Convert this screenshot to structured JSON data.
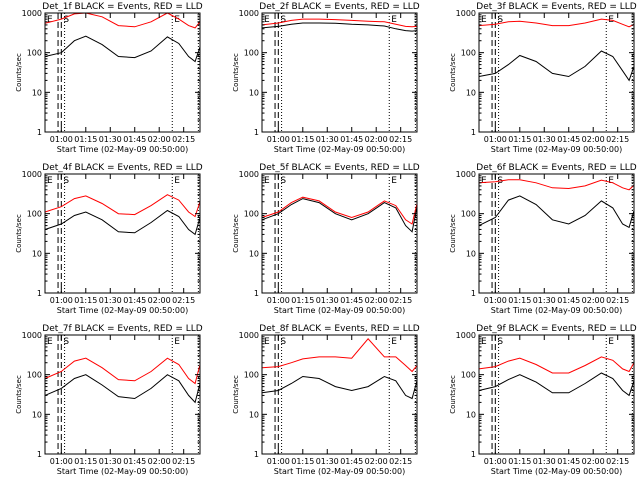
{
  "figure": {
    "layout": "3x3 grid",
    "xlabel": "Start Time (02-May-09 00:50:00)",
    "ylabel": "Counts/sec",
    "y_ticks": [
      "1",
      "10",
      "100",
      "1000"
    ],
    "x_ticks": [
      "01:00",
      "01:15",
      "01:30",
      "01:45",
      "02:00",
      "02:15"
    ],
    "marker_labels": [
      "E",
      "S",
      "E"
    ],
    "colors": {
      "events": "#000000",
      "lld": "#ff0000",
      "axes": "#000000",
      "background": "#ffffff"
    }
  },
  "chart_data": [
    {
      "type": "line",
      "title": "Det_1f BLACK = Events, RED = LLD",
      "yscale": "log",
      "ylim": [
        1,
        1000
      ],
      "xlim": [
        "00:50",
        "02:25"
      ],
      "xlabel": "Start Time (02-May-09 00:50:00)",
      "ylabel": "Counts/sec",
      "series": [
        {
          "name": "LLD",
          "color": "#ff0000",
          "x": [
            "00:50",
            "01:00",
            "01:08",
            "01:15",
            "01:25",
            "01:35",
            "01:45",
            "01:55",
            "02:05",
            "02:12",
            "02:18",
            "02:22",
            "02:25"
          ],
          "y": [
            550,
            700,
            950,
            1000,
            800,
            480,
            450,
            600,
            1000,
            700,
            480,
            420,
            600
          ]
        },
        {
          "name": "Events",
          "color": "#000000",
          "x": [
            "00:50",
            "01:00",
            "01:08",
            "01:15",
            "01:25",
            "01:35",
            "01:45",
            "01:55",
            "02:05",
            "02:12",
            "02:18",
            "02:22",
            "02:25"
          ],
          "y": [
            80,
            100,
            200,
            260,
            160,
            80,
            75,
            110,
            250,
            170,
            80,
            60,
            140
          ]
        }
      ]
    },
    {
      "type": "line",
      "title": "Det_2f BLACK = Events, RED = LLD",
      "yscale": "log",
      "ylim": [
        1,
        1000
      ],
      "xlim": [
        "00:50",
        "02:25"
      ],
      "xlabel": "Start Time (02-May-09 00:50:00)",
      "ylabel": "Counts/sec",
      "series": [
        {
          "name": "LLD",
          "color": "#ff0000",
          "x": [
            "00:50",
            "01:00",
            "01:08",
            "01:15",
            "01:25",
            "01:35",
            "01:45",
            "01:55",
            "02:05",
            "02:12",
            "02:18",
            "02:22",
            "02:25"
          ],
          "y": [
            500,
            560,
            650,
            700,
            700,
            680,
            650,
            620,
            600,
            520,
            460,
            450,
            460
          ]
        },
        {
          "name": "Events",
          "color": "#000000",
          "x": [
            "00:50",
            "01:00",
            "01:08",
            "01:15",
            "01:25",
            "01:35",
            "01:45",
            "01:55",
            "02:05",
            "02:12",
            "02:18",
            "02:22",
            "02:25"
          ],
          "y": [
            420,
            460,
            520,
            560,
            560,
            550,
            520,
            500,
            470,
            400,
            360,
            350,
            360
          ]
        }
      ]
    },
    {
      "type": "line",
      "title": "Det_3f BLACK = Events, RED = LLD",
      "yscale": "log",
      "ylim": [
        1,
        1000
      ],
      "xlim": [
        "00:50",
        "02:25"
      ],
      "xlabel": "Start Time (02-May-09 00:50:00)",
      "ylabel": "Counts/sec",
      "series": [
        {
          "name": "LLD",
          "color": "#ff0000",
          "x": [
            "00:50",
            "01:00",
            "01:08",
            "01:15",
            "01:25",
            "01:35",
            "01:45",
            "01:55",
            "02:05",
            "02:12",
            "02:18",
            "02:22",
            "02:25"
          ],
          "y": [
            480,
            520,
            600,
            620,
            560,
            480,
            480,
            560,
            700,
            650,
            520,
            450,
            520
          ]
        },
        {
          "name": "Events",
          "color": "#000000",
          "x": [
            "00:50",
            "01:00",
            "01:08",
            "01:15",
            "01:25",
            "01:35",
            "01:45",
            "01:55",
            "02:05",
            "02:12",
            "02:18",
            "02:22",
            "02:25"
          ],
          "y": [
            25,
            30,
            50,
            85,
            60,
            30,
            25,
            45,
            110,
            80,
            35,
            20,
            45
          ]
        }
      ]
    },
    {
      "type": "line",
      "title": "Det_4f BLACK = Events, RED = LLD",
      "yscale": "log",
      "ylim": [
        1,
        1000
      ],
      "xlim": [
        "00:50",
        "02:25"
      ],
      "xlabel": "Start Time (02-May-09 00:50:00)",
      "ylabel": "Counts/sec",
      "series": [
        {
          "name": "LLD",
          "color": "#ff0000",
          "x": [
            "00:50",
            "01:00",
            "01:08",
            "01:15",
            "01:25",
            "01:35",
            "01:45",
            "01:55",
            "02:05",
            "02:12",
            "02:18",
            "02:22",
            "02:25"
          ],
          "y": [
            110,
            150,
            240,
            280,
            180,
            100,
            95,
            160,
            300,
            220,
            110,
            85,
            200
          ]
        },
        {
          "name": "Events",
          "color": "#000000",
          "x": [
            "00:50",
            "01:00",
            "01:08",
            "01:15",
            "01:25",
            "01:35",
            "01:45",
            "01:55",
            "02:05",
            "02:12",
            "02:18",
            "02:22",
            "02:25"
          ],
          "y": [
            40,
            55,
            90,
            110,
            70,
            35,
            33,
            60,
            120,
            85,
            40,
            30,
            80
          ]
        }
      ]
    },
    {
      "type": "line",
      "title": "Det_5f BLACK = Events, RED = LLD",
      "yscale": "log",
      "ylim": [
        1,
        1000
      ],
      "xlim": [
        "00:50",
        "02:25"
      ],
      "xlabel": "Start Time (02-May-09 00:50:00)",
      "ylabel": "Counts/sec",
      "series": [
        {
          "name": "LLD",
          "color": "#ff0000",
          "x": [
            "00:50",
            "01:00",
            "01:08",
            "01:15",
            "01:25",
            "01:35",
            "01:45",
            "01:55",
            "02:05",
            "02:12",
            "02:18",
            "02:22",
            "02:25"
          ],
          "y": [
            80,
            110,
            190,
            260,
            210,
            110,
            80,
            110,
            210,
            160,
            70,
            55,
            180
          ]
        },
        {
          "name": "Events",
          "color": "#000000",
          "x": [
            "00:50",
            "01:00",
            "01:08",
            "01:15",
            "01:25",
            "01:35",
            "01:45",
            "01:55",
            "02:05",
            "02:12",
            "02:18",
            "02:22",
            "02:25"
          ],
          "y": [
            70,
            100,
            170,
            240,
            190,
            100,
            70,
            100,
            190,
            140,
            50,
            35,
            150
          ]
        }
      ]
    },
    {
      "type": "line",
      "title": "Det_6f BLACK = Events, RED = LLD",
      "yscale": "log",
      "ylim": [
        1,
        1000
      ],
      "xlim": [
        "00:50",
        "02:25"
      ],
      "xlabel": "Start Time (02-May-09 00:50:00)",
      "ylabel": "Counts/sec",
      "series": [
        {
          "name": "LLD",
          "color": "#ff0000",
          "x": [
            "00:50",
            "01:00",
            "01:08",
            "01:15",
            "01:25",
            "01:35",
            "01:45",
            "01:55",
            "02:05",
            "02:12",
            "02:18",
            "02:22",
            "02:25"
          ],
          "y": [
            600,
            640,
            720,
            720,
            600,
            450,
            430,
            500,
            700,
            600,
            450,
            400,
            520
          ]
        },
        {
          "name": "Events",
          "color": "#000000",
          "x": [
            "00:50",
            "01:00",
            "01:08",
            "01:15",
            "01:25",
            "01:35",
            "01:45",
            "01:55",
            "02:05",
            "02:12",
            "02:18",
            "02:22",
            "02:25"
          ],
          "y": [
            50,
            80,
            220,
            280,
            170,
            70,
            55,
            90,
            210,
            140,
            55,
            45,
            120
          ]
        }
      ]
    },
    {
      "type": "line",
      "title": "Det_7f BLACK = Events, RED = LLD",
      "yscale": "log",
      "ylim": [
        1,
        1000
      ],
      "xlim": [
        "00:50",
        "02:25"
      ],
      "xlabel": "Start Time (02-May-09 00:50:00)",
      "ylabel": "Counts/sec",
      "series": [
        {
          "name": "LLD",
          "color": "#ff0000",
          "x": [
            "00:50",
            "01:00",
            "01:08",
            "01:15",
            "01:25",
            "01:35",
            "01:45",
            "01:55",
            "02:05",
            "02:12",
            "02:18",
            "02:22",
            "02:25"
          ],
          "y": [
            80,
            120,
            220,
            260,
            150,
            75,
            70,
            120,
            260,
            180,
            80,
            60,
            180
          ]
        },
        {
          "name": "Events",
          "color": "#000000",
          "x": [
            "00:50",
            "01:00",
            "01:08",
            "01:15",
            "01:25",
            "01:35",
            "01:45",
            "01:55",
            "02:05",
            "02:12",
            "02:18",
            "02:22",
            "02:25"
          ],
          "y": [
            30,
            45,
            80,
            100,
            55,
            28,
            25,
            45,
            100,
            70,
            30,
            20,
            60
          ]
        }
      ]
    },
    {
      "type": "line",
      "title": "Det_8f BLACK = Events, RED = LLD",
      "yscale": "log",
      "ylim": [
        1,
        1000
      ],
      "xlim": [
        "00:50",
        "02:25"
      ],
      "xlabel": "Start Time (02-May-09 00:50:00)",
      "ylabel": "Counts/sec",
      "series": [
        {
          "name": "LLD",
          "color": "#ff0000",
          "x": [
            "00:50",
            "01:00",
            "01:08",
            "01:15",
            "01:25",
            "01:35",
            "01:45",
            "01:55",
            "02:05",
            "02:12",
            "02:18",
            "02:22",
            "02:25"
          ],
          "y": [
            150,
            160,
            200,
            250,
            280,
            280,
            260,
            800,
            280,
            280,
            170,
            120,
            170
          ]
        },
        {
          "name": "Events",
          "color": "#000000",
          "x": [
            "00:50",
            "01:00",
            "01:08",
            "01:15",
            "01:25",
            "01:35",
            "01:45",
            "01:55",
            "02:05",
            "02:12",
            "02:18",
            "02:22",
            "02:25"
          ],
          "y": [
            35,
            40,
            60,
            90,
            80,
            50,
            40,
            50,
            90,
            70,
            30,
            25,
            70
          ]
        }
      ]
    },
    {
      "type": "line",
      "title": "Det_9f BLACK = Events, RED = LLD",
      "yscale": "log",
      "ylim": [
        1,
        1000
      ],
      "xlim": [
        "00:50",
        "02:25"
      ],
      "xlabel": "Start Time (02-May-09 00:50:00)",
      "ylabel": "Counts/sec",
      "series": [
        {
          "name": "LLD",
          "color": "#ff0000",
          "x": [
            "00:50",
            "01:00",
            "01:08",
            "01:15",
            "01:25",
            "01:35",
            "01:45",
            "01:55",
            "02:05",
            "02:12",
            "02:18",
            "02:22",
            "02:25"
          ],
          "y": [
            140,
            160,
            220,
            260,
            180,
            110,
            110,
            170,
            280,
            230,
            140,
            120,
            200
          ]
        },
        {
          "name": "Events",
          "color": "#000000",
          "x": [
            "00:50",
            "01:00",
            "01:08",
            "01:15",
            "01:25",
            "01:35",
            "01:45",
            "01:55",
            "02:05",
            "02:12",
            "02:18",
            "02:22",
            "02:25"
          ],
          "y": [
            40,
            50,
            75,
            100,
            65,
            35,
            35,
            60,
            110,
            80,
            40,
            30,
            70
          ]
        }
      ]
    }
  ]
}
